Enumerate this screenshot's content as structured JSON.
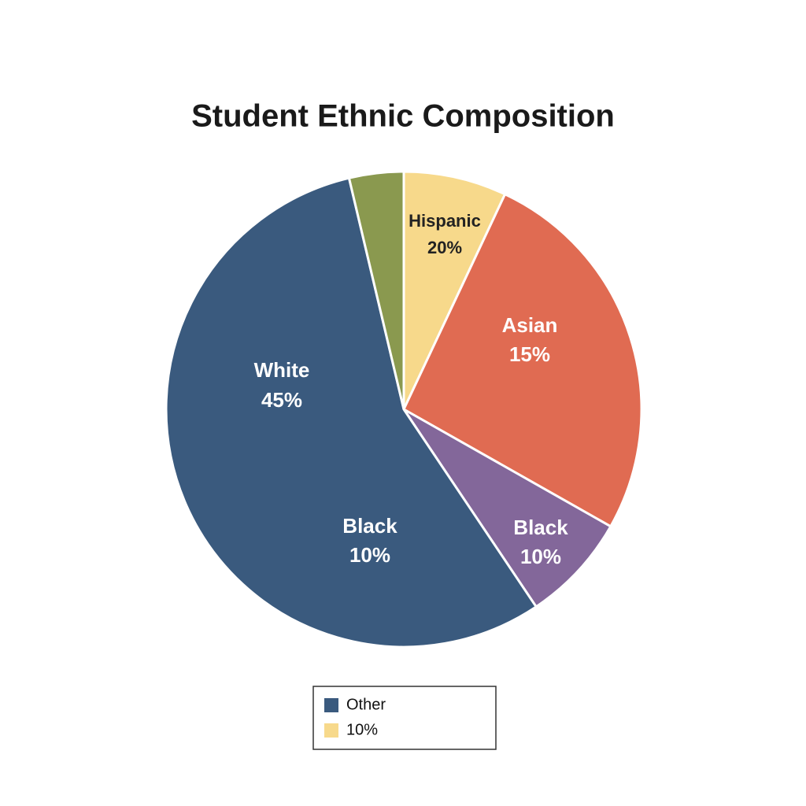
{
  "chart_data": {
    "type": "pie",
    "title": "Student Ethnic Composition",
    "values": [
      7,
      26.2,
      7.4,
      55.7,
      3.7
    ],
    "colors": [
      "#f7d98b",
      "#e06b52",
      "#83679a",
      "#3a5a7e",
      "#8a994f"
    ],
    "annotations": [
      [
        "Hispanic",
        "20%"
      ],
      [
        "Asian",
        "15%"
      ],
      [
        "White",
        "45%"
      ],
      [
        "Black",
        "10%"
      ],
      [
        "Black",
        "10%"
      ]
    ],
    "legend": [
      {
        "label": "Other",
        "color": "#3a5a7e"
      },
      {
        "label": "10%",
        "color": "#f7d98b"
      }
    ]
  }
}
